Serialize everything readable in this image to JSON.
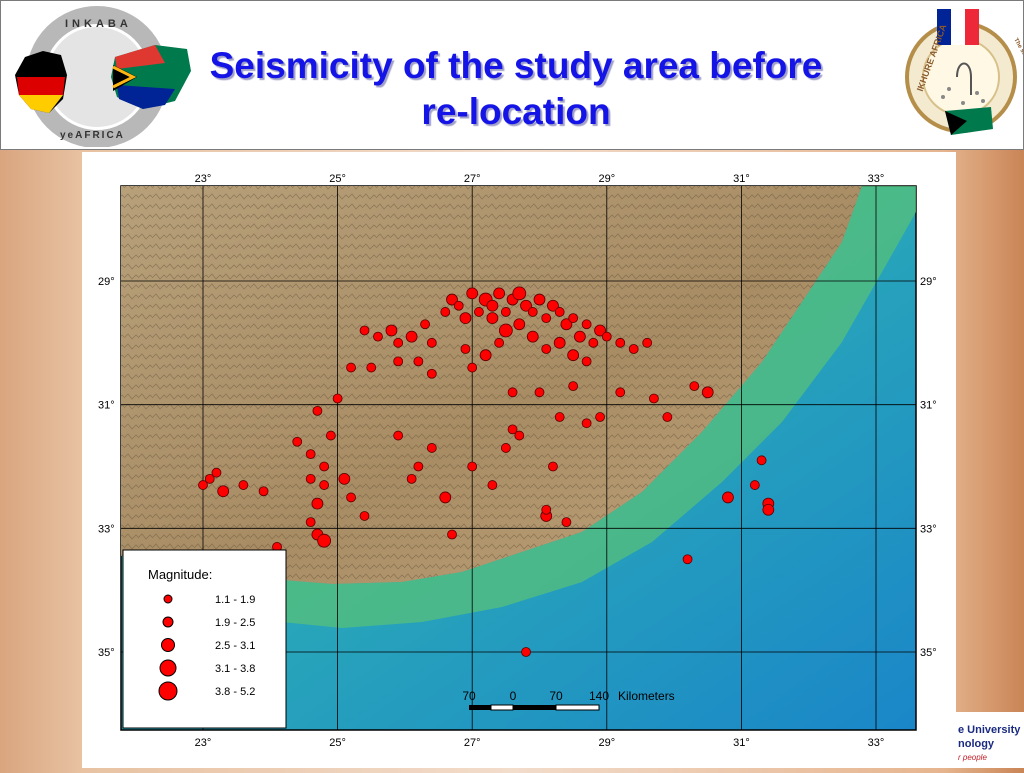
{
  "header": {
    "title_line1": "Seismicity of the study area before",
    "title_line2": "re-location",
    "logo_left_text": "INKABA yeAFRICA",
    "logo_right_text": "The story is in the African wind",
    "logo_right_name": "IKHURE AFRICA"
  },
  "map": {
    "top_lon_labels": [
      "23°",
      "25°",
      "27°",
      "29°",
      "31°",
      "33°"
    ],
    "bottom_lon_labels": [
      "23°",
      "25°",
      "27°",
      "29°",
      "31°",
      "33°"
    ],
    "left_lat_labels": [
      "29°",
      "31°",
      "33°",
      "35°"
    ],
    "right_lat_labels": [
      "29°",
      "31°",
      "33°"
    ],
    "right_lat_label_bottom": "35°",
    "scale_bar": {
      "labels": [
        "70",
        "0",
        "70",
        "140"
      ],
      "unit": "Kilometers"
    },
    "legend": {
      "title": "Magnitude:",
      "items": [
        {
          "label": "1.1 - 1.9",
          "r": 4
        },
        {
          "label": "1.9 - 2.5",
          "r": 5
        },
        {
          "label": "2.5 - 3.1",
          "r": 6.5
        },
        {
          "label": "3.1 - 3.8",
          "r": 8
        },
        {
          "label": "3.8 - 5.2",
          "r": 9
        }
      ]
    },
    "colors": {
      "event_fill": "#ff0000",
      "event_stroke": "#5a0000",
      "land": "#b39a72",
      "sea_shallow": "#34b89c",
      "sea_deep": "#1e8fc8"
    },
    "events": [
      [
        25.4,
        29.8,
        2
      ],
      [
        25.6,
        29.9,
        2
      ],
      [
        25.8,
        29.8,
        3
      ],
      [
        25.9,
        30.0,
        2
      ],
      [
        26.1,
        29.9,
        3
      ],
      [
        26.3,
        29.7,
        2
      ],
      [
        26.4,
        30.0,
        2
      ],
      [
        26.6,
        29.5,
        2
      ],
      [
        26.7,
        29.3,
        3
      ],
      [
        26.8,
        29.4,
        2
      ],
      [
        26.9,
        29.6,
        3
      ],
      [
        27.0,
        29.2,
        3
      ],
      [
        27.1,
        29.5,
        2
      ],
      [
        27.2,
        29.3,
        4
      ],
      [
        27.3,
        29.4,
        3
      ],
      [
        27.4,
        29.2,
        3
      ],
      [
        27.5,
        29.5,
        2
      ],
      [
        27.6,
        29.3,
        3
      ],
      [
        27.7,
        29.2,
        4
      ],
      [
        27.8,
        29.4,
        3
      ],
      [
        27.9,
        29.5,
        2
      ],
      [
        28.0,
        29.3,
        3
      ],
      [
        28.1,
        29.6,
        2
      ],
      [
        28.2,
        29.4,
        3
      ],
      [
        28.3,
        29.5,
        2
      ],
      [
        28.4,
        29.7,
        3
      ],
      [
        28.5,
        29.6,
        2
      ],
      [
        28.6,
        29.9,
        3
      ],
      [
        28.7,
        29.7,
        2
      ],
      [
        28.8,
        30.0,
        2
      ],
      [
        28.9,
        29.8,
        3
      ],
      [
        29.0,
        29.9,
        2
      ],
      [
        29.2,
        30.0,
        2
      ],
      [
        29.4,
        30.1,
        2
      ],
      [
        29.6,
        30.0,
        2
      ],
      [
        27.3,
        29.6,
        3
      ],
      [
        27.5,
        29.8,
        4
      ],
      [
        27.7,
        29.7,
        3
      ],
      [
        27.9,
        29.9,
        3
      ],
      [
        28.1,
        30.1,
        2
      ],
      [
        28.3,
        30.0,
        3
      ],
      [
        28.5,
        30.2,
        3
      ],
      [
        28.7,
        30.3,
        2
      ],
      [
        27.4,
        30.0,
        2
      ],
      [
        27.2,
        30.2,
        3
      ],
      [
        27.0,
        30.4,
        2
      ],
      [
        26.9,
        30.1,
        2
      ],
      [
        26.4,
        30.5,
        2
      ],
      [
        26.2,
        30.3,
        2
      ],
      [
        25.9,
        30.3,
        2
      ],
      [
        25.5,
        30.4,
        2
      ],
      [
        25.2,
        30.4,
        2
      ],
      [
        25.0,
        30.9,
        2
      ],
      [
        24.7,
        31.1,
        2
      ],
      [
        24.4,
        31.6,
        2
      ],
      [
        24.6,
        31.8,
        2
      ],
      [
        24.9,
        31.5,
        2
      ],
      [
        24.8,
        32.0,
        2
      ],
      [
        24.6,
        32.2,
        2
      ],
      [
        24.8,
        32.3,
        2
      ],
      [
        25.1,
        32.2,
        3
      ],
      [
        25.2,
        32.5,
        2
      ],
      [
        24.7,
        32.6,
        3
      ],
      [
        24.6,
        32.9,
        2
      ],
      [
        24.7,
        33.1,
        3
      ],
      [
        24.8,
        33.2,
        4
      ],
      [
        23.2,
        32.1,
        2
      ],
      [
        23.1,
        32.2,
        2
      ],
      [
        23.3,
        32.4,
        3
      ],
      [
        23.0,
        32.3,
        2
      ],
      [
        23.6,
        32.3,
        2
      ],
      [
        23.9,
        32.4,
        2
      ],
      [
        24.1,
        33.3,
        2
      ],
      [
        25.4,
        32.8,
        2
      ],
      [
        25.9,
        31.5,
        2
      ],
      [
        26.1,
        32.2,
        2
      ],
      [
        26.2,
        32.0,
        2
      ],
      [
        26.4,
        31.7,
        2
      ],
      [
        26.6,
        32.5,
        3
      ],
      [
        26.7,
        33.1,
        2
      ],
      [
        27.0,
        32.0,
        2
      ],
      [
        27.3,
        32.3,
        2
      ],
      [
        27.5,
        31.7,
        2
      ],
      [
        27.7,
        31.5,
        2
      ],
      [
        28.2,
        32.0,
        2
      ],
      [
        28.3,
        31.2,
        2
      ],
      [
        28.5,
        30.7,
        2
      ],
      [
        28.7,
        31.3,
        2
      ],
      [
        28.9,
        31.2,
        2
      ],
      [
        29.2,
        30.8,
        2
      ],
      [
        29.7,
        30.9,
        2
      ],
      [
        29.9,
        31.2,
        2
      ],
      [
        30.3,
        30.7,
        2
      ],
      [
        30.5,
        30.8,
        3
      ],
      [
        30.8,
        32.5,
        3
      ],
      [
        31.2,
        32.3,
        2
      ],
      [
        31.3,
        31.9,
        2
      ],
      [
        31.4,
        32.6,
        3
      ],
      [
        31.4,
        32.7,
        3
      ],
      [
        30.2,
        33.5,
        2
      ],
      [
        27.8,
        35.0,
        2
      ],
      [
        28.1,
        32.8,
        3
      ],
      [
        28.4,
        32.9,
        2
      ],
      [
        28.1,
        32.7,
        2
      ],
      [
        27.6,
        31.4,
        2
      ],
      [
        28.0,
        30.8,
        2
      ],
      [
        27.6,
        30.8,
        2
      ]
    ]
  }
}
